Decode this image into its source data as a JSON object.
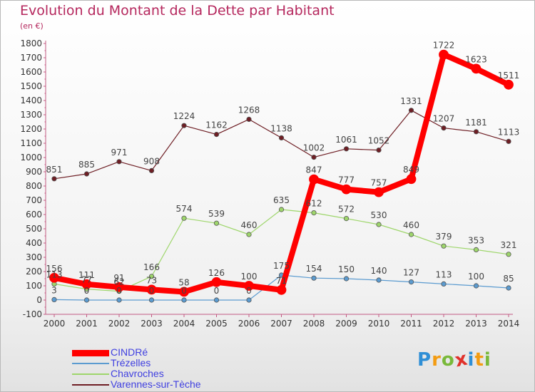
{
  "title": "Evolution du Montant de la Dette par Habitant",
  "unit": "(en €)",
  "logo": {
    "text": "Proxiti",
    "letters": [
      {
        "ch": "P",
        "color": "#2f8fd6"
      },
      {
        "ch": "r",
        "color": "#f39c12"
      },
      {
        "ch": "o",
        "color": "#79b93a"
      },
      {
        "ch": "x",
        "color": "#e0312b"
      },
      {
        "ch": "i",
        "color": "#2f8fd6"
      },
      {
        "ch": "t",
        "color": "#f39c12"
      },
      {
        "ch": "i",
        "color": "#79b93a"
      }
    ]
  },
  "chart_data": {
    "type": "line",
    "title": "Evolution du Montant de la Dette par Habitant",
    "ylabel": "(en €)",
    "x": [
      "2000",
      "2001",
      "2002",
      "2003",
      "2004",
      "2005",
      "2006",
      "2007",
      "2008",
      "2009",
      "2010",
      "2011",
      "2012",
      "2013",
      "2014"
    ],
    "ylim": [
      -100,
      1800
    ],
    "yticks": [
      -100,
      0,
      100,
      200,
      300,
      400,
      500,
      600,
      700,
      800,
      900,
      1000,
      1100,
      1200,
      1300,
      1400,
      1500,
      1600,
      1700,
      1800
    ],
    "grid": false,
    "legend_placement": "bottom-left",
    "series": [
      {
        "name": "Varennes-sur-Tèche",
        "color": "#6e1e24",
        "values": [
          851,
          885,
          971,
          908,
          1224,
          1162,
          1268,
          1138,
          1002,
          1061,
          1052,
          1331,
          1207,
          1181,
          1113
        ],
        "labels": [
          "851",
          "885",
          "971",
          "908",
          "1224",
          "1162",
          "1268",
          "1138",
          "1002",
          "1061",
          "1052",
          "1331",
          "1207",
          "1181",
          "1113"
        ]
      },
      {
        "name": "Chavroches",
        "color": "#9ed66b",
        "values": [
          113,
          77,
          62,
          166,
          574,
          539,
          460,
          635,
          612,
          572,
          530,
          460,
          379,
          353,
          321
        ],
        "labels": [
          "113",
          "77",
          "62",
          "166",
          "574",
          "539",
          "460",
          "635",
          "612",
          "572",
          "530",
          "460",
          "379",
          "353",
          "321"
        ]
      },
      {
        "name": "Trézelles",
        "color": "#5b9bd0",
        "values": [
          3,
          0,
          0,
          0,
          0,
          0,
          0,
          175,
          154,
          150,
          140,
          127,
          113,
          100,
          85
        ],
        "labels": [
          "3",
          "0",
          "0",
          "0",
          "0",
          "0",
          "0",
          "175",
          "154",
          "150",
          "140",
          "127",
          "113",
          "100",
          "85"
        ]
      },
      {
        "name": "CINDRé",
        "color": "#ff0000",
        "values": [
          156,
          111,
          91,
          73,
          58,
          126,
          100,
          71,
          847,
          777,
          757,
          849,
          1722,
          1623,
          1511
        ],
        "labels": [
          "156",
          "111",
          "91",
          "73",
          "58",
          "126",
          "100",
          "71",
          "847",
          "777",
          "757",
          "849",
          "1722",
          "1623",
          "1511"
        ]
      }
    ]
  },
  "legend": [
    {
      "label": "CINDRé",
      "color": "#ff0000",
      "thickness": 9
    },
    {
      "label": "Trézelles",
      "color": "#5b9bd0",
      "thickness": 2
    },
    {
      "label": "Chavroches",
      "color": "#9ed66b",
      "thickness": 2
    },
    {
      "label": "Varennes-sur-Tèche",
      "color": "#6e1e24",
      "thickness": 2
    }
  ]
}
